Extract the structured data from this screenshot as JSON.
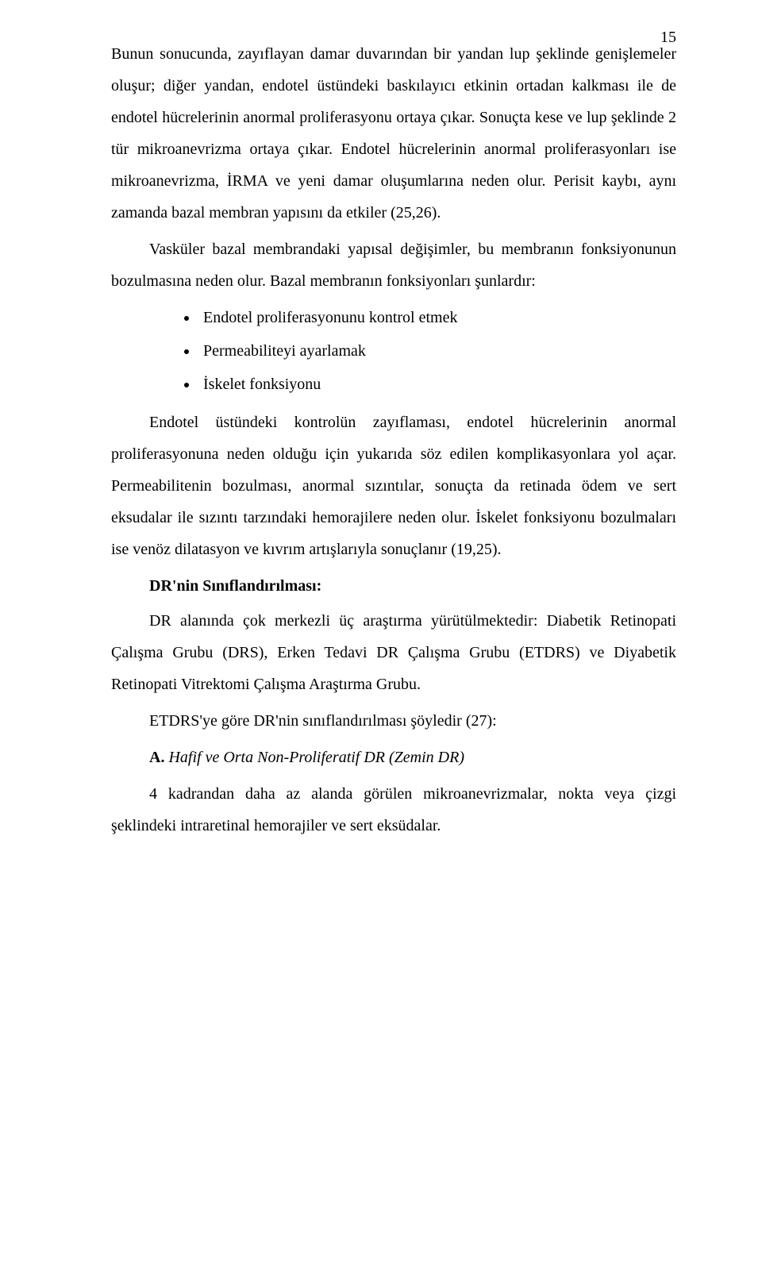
{
  "pageNumber": "15",
  "p1": "Bunun sonucunda, zayıflayan damar duvarından bir yandan lup şeklinde genişlemeler oluşur; diğer yandan, endotel üstündeki baskılayıcı etkinin ortadan kalkması ile de endotel hücrelerinin anormal proliferasyonu ortaya çıkar. Sonuçta kese ve lup şeklinde 2 tür mikroanevrizma ortaya çıkar. Endotel hücrelerinin anormal proliferasyonları ise mikroanevrizma, İRMA ve yeni damar oluşumlarına neden olur. Perisit kaybı, aynı zamanda bazal membran yapısını da etkiler (25,26).",
  "p2": "Vasküler bazal membrandaki yapısal değişimler, bu membranın fonksiyonunun bozulmasına neden olur. Bazal membranın fonksiyonları şunlardır:",
  "bullets": {
    "b1": "Endotel proliferasyonunu kontrol etmek",
    "b2": "Permeabiliteyi ayarlamak",
    "b3": "İskelet fonksiyonu"
  },
  "p3": "Endotel üstündeki kontrolün zayıflaması, endotel hücrelerinin anormal proliferasyonuna neden olduğu için yukarıda söz edilen komplikasyonlara yol açar. Permeabilitenin bozulması, anormal sızıntılar, sonuçta da retinada ödem ve sert eksudalar ile sızıntı tarzındaki hemorajilere neden olur. İskelet fonksiyonu bozulmaları ise venöz dilatasyon ve kıvrım artışlarıyla sonuçlanır (19,25).",
  "h1": "DR'nin Sınıflandırılması:",
  "p4": "DR alanında çok merkezli üç araştırma yürütülmektedir: Diabetik Retinopati Çalışma Grubu (DRS), Erken Tedavi DR Çalışma Grubu (ETDRS) ve Diyabetik Retinopati Vitrektomi Çalışma Araştırma Grubu.",
  "p5": "ETDRS'ye göre DR'nin sınıflandırılması şöyledir (27):",
  "p6_prefix": "A.",
  "p6_italic": " Hafif ve Orta Non-Proliferatif DR (Zemin DR)",
  "p7": "4 kadrandan daha az alanda görülen mikroanevrizmalar, nokta veya çizgi şeklindeki intraretinal hemorajiler ve sert eksüdalar."
}
